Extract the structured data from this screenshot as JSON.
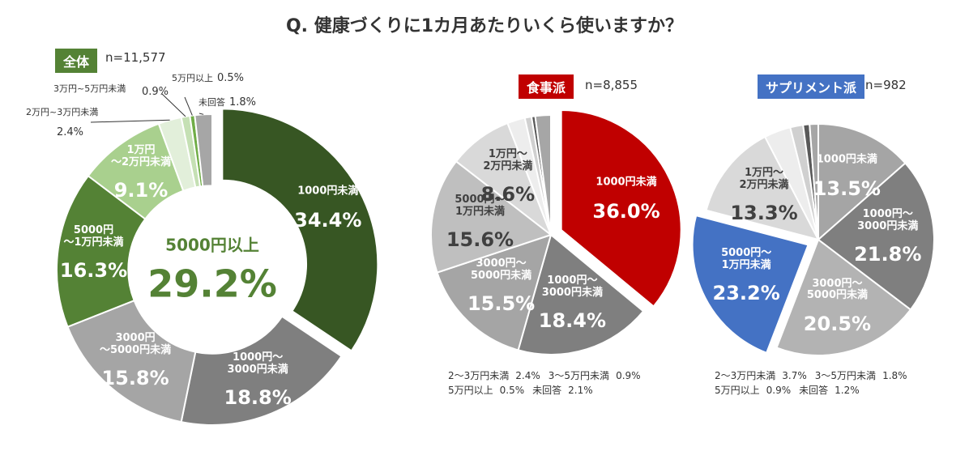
{
  "title": "Q. 健康づくりに1カ月あたりいくら使いますか？",
  "chart_data": [
    {
      "type": "donut",
      "badge": "全体",
      "badge_color": "#548235",
      "n": "n=11,577",
      "categories": [
        "1000円未満",
        "1000円〜\n3000円未満",
        "3000円\n〜5000円未満",
        "5000円\n〜1万円未満",
        "1万円\n〜2万円未満",
        "2万円~3万円未満",
        "3万円~5万円未満",
        "5万円以上",
        "未回答"
      ],
      "values": [
        34.4,
        18.8,
        15.8,
        16.3,
        9.1,
        2.4,
        0.9,
        0.5,
        1.8
      ],
      "value_labels": [
        "34.4%",
        "18.8%",
        "15.8%",
        "16.3%",
        "9.1%",
        "2.4%",
        "0.9%",
        "0.5%",
        "1.8%"
      ],
      "colors": [
        "#375623",
        "#7f7f7f",
        "#a5a5a5",
        "#548235",
        "#a9d08e",
        "#e2efda",
        "#c5e0b4",
        "#70ad47",
        "#a6a6a6"
      ],
      "explode_index": 0,
      "center_label": "5000円以上",
      "center_value_label": "29.2%"
    },
    {
      "type": "pie",
      "badge": "食事派",
      "badge_color": "#c00000",
      "n": "n=8,855",
      "categories": [
        "1000円未満",
        "1000円〜\n3000円未満",
        "3000円〜\n5000円未満",
        "5000円〜\n1万円未満",
        "1万円〜\n2万円未満",
        "2〜3万円未満",
        "3〜5万円未満",
        "5万円以上",
        "未回答"
      ],
      "values": [
        36.0,
        18.4,
        15.5,
        15.6,
        8.6,
        2.4,
        0.9,
        0.5,
        2.1
      ],
      "value_labels": [
        "36.0%",
        "18.4%",
        "15.5%",
        "15.6%",
        "8.6%",
        "2.4%",
        "0.9%",
        "0.5%",
        "2.1%"
      ],
      "colors": [
        "#c00000",
        "#7f7f7f",
        "#a5a5a5",
        "#bfbfbf",
        "#d9d9d9",
        "#ededed",
        "#d0d0d0",
        "#595959",
        "#a6a6a6"
      ],
      "explode_index": 0
    },
    {
      "type": "pie",
      "badge": "サプリメント派",
      "badge_color": "#4472c4",
      "n": "n=982",
      "categories": [
        "1000円未満",
        "1000円〜\n3000円未満",
        "3000円〜\n5000円未満",
        "5000円〜\n1万円未満",
        "1万円〜\n2万円未満",
        "2〜3万円未満",
        "3〜5万円未満",
        "5万円以上",
        "未回答"
      ],
      "values": [
        13.5,
        21.8,
        20.5,
        23.2,
        13.3,
        3.7,
        1.8,
        0.9,
        1.2
      ],
      "value_labels": [
        "13.5%",
        "21.8%",
        "20.5%",
        "23.2%",
        "13.3%",
        "3.7%",
        "1.8%",
        "0.9%",
        "1.2%"
      ],
      "colors": [
        "#a5a5a5",
        "#7f7f7f",
        "#b3b3b3",
        "#4472c4",
        "#d9d9d9",
        "#ededed",
        "#d0d0d0",
        "#595959",
        "#a6a6a6"
      ],
      "explode_index": 3
    }
  ]
}
